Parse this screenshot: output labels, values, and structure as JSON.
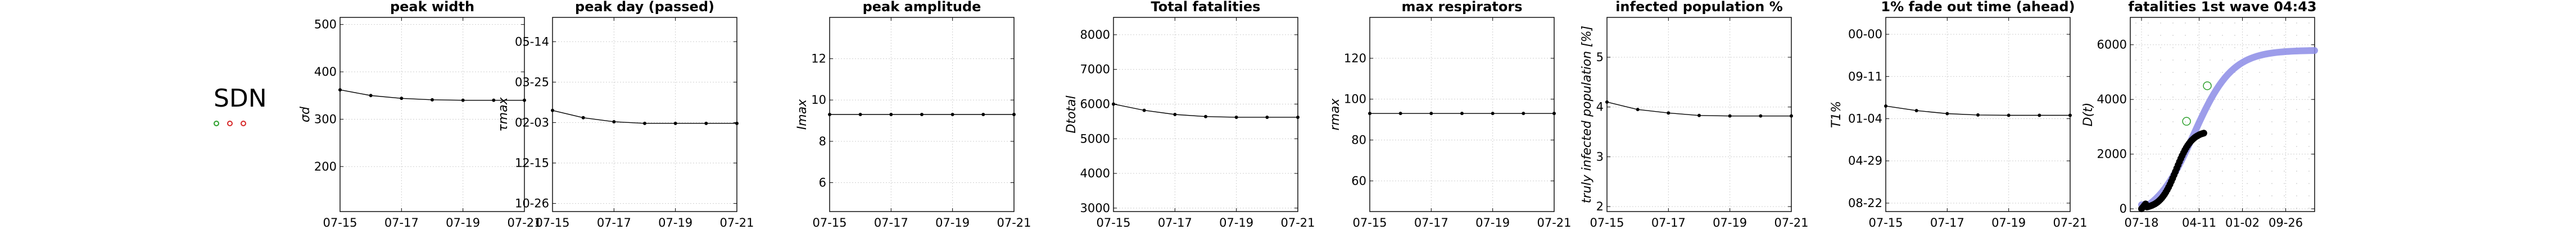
{
  "country": "SDN",
  "marker_colors": [
    "#2ca02c",
    "#d62728",
    "#d62728"
  ],
  "chart_data": [
    {
      "type": "line",
      "title": "peak width",
      "ylabel": "σd",
      "x": [
        "07-15",
        "07-16",
        "07-17",
        "07-18",
        "07-19",
        "07-20",
        "07-21"
      ],
      "xticks": [
        "07-15",
        "07-17",
        "07-19",
        "07-21"
      ],
      "yticks": [
        {
          "v": 200,
          "t": "200"
        },
        {
          "v": 300,
          "t": "300"
        },
        {
          "v": 400,
          "t": "400"
        },
        {
          "v": 500,
          "t": "500"
        }
      ],
      "ylim": [
        105,
        515
      ],
      "values": [
        362,
        350,
        344,
        341,
        340,
        340,
        340
      ]
    },
    {
      "type": "line",
      "title": "peak day (passed)",
      "ylabel": "τmax",
      "x": [
        "07-15",
        "07-16",
        "07-17",
        "07-18",
        "07-19",
        "07-20",
        "07-21"
      ],
      "xticks": [
        "07-15",
        "07-17",
        "07-19",
        "07-21"
      ],
      "yticks": [
        {
          "v": 0,
          "t": "10-26"
        },
        {
          "v": 50,
          "t": "12-15"
        },
        {
          "v": 100,
          "t": "02-03"
        },
        {
          "v": 150,
          "t": "03-25"
        },
        {
          "v": 200,
          "t": "05-14"
        }
      ],
      "ylim": [
        -10,
        230
      ],
      "values": [
        115,
        106,
        101,
        99,
        99,
        99,
        99
      ]
    },
    {
      "type": "line",
      "title": "peak amplitude",
      "ylabel": "Imax",
      "x": [
        "07-15",
        "07-16",
        "07-17",
        "07-18",
        "07-19",
        "07-20",
        "07-21"
      ],
      "xticks": [
        "07-15",
        "07-17",
        "07-19",
        "07-21"
      ],
      "yticks": [
        {
          "v": 6,
          "t": "6"
        },
        {
          "v": 8,
          "t": "8"
        },
        {
          "v": 10,
          "t": "10"
        },
        {
          "v": 12,
          "t": "12"
        }
      ],
      "ylim": [
        4.6,
        14
      ],
      "values": [
        9.3,
        9.3,
        9.3,
        9.3,
        9.3,
        9.3,
        9.3
      ]
    },
    {
      "type": "line",
      "title": "Total fatalities",
      "ylabel": "Dtotal",
      "x": [
        "07-15",
        "07-16",
        "07-17",
        "07-18",
        "07-19",
        "07-20",
        "07-21"
      ],
      "xticks": [
        "07-15",
        "07-17",
        "07-19",
        "07-21"
      ],
      "yticks": [
        {
          "v": 3000,
          "t": "3000"
        },
        {
          "v": 4000,
          "t": "4000"
        },
        {
          "v": 5000,
          "t": "5000"
        },
        {
          "v": 6000,
          "t": "6000"
        },
        {
          "v": 7000,
          "t": "7000"
        },
        {
          "v": 8000,
          "t": "8000"
        }
      ],
      "ylim": [
        2900,
        8500
      ],
      "values": [
        6000,
        5820,
        5700,
        5640,
        5620,
        5620,
        5620
      ]
    },
    {
      "type": "line",
      "title": "max respirators",
      "ylabel": "rmax",
      "x": [
        "07-15",
        "07-16",
        "07-17",
        "07-18",
        "07-19",
        "07-20",
        "07-21"
      ],
      "xticks": [
        "07-15",
        "07-17",
        "07-19",
        "07-21"
      ],
      "yticks": [
        {
          "v": 60,
          "t": "60"
        },
        {
          "v": 80,
          "t": "80"
        },
        {
          "v": 100,
          "t": "100"
        },
        {
          "v": 120,
          "t": "120"
        }
      ],
      "ylim": [
        45,
        140
      ],
      "values": [
        93,
        93,
        93,
        93,
        93,
        93,
        93
      ]
    },
    {
      "type": "line",
      "title": "infected population %",
      "ylabel": "truly infected population [%]",
      "x": [
        "07-15",
        "07-16",
        "07-17",
        "07-18",
        "07-19",
        "07-20",
        "07-21"
      ],
      "xticks": [
        "07-15",
        "07-17",
        "07-19",
        "07-21"
      ],
      "yticks": [
        {
          "v": 2,
          "t": "2"
        },
        {
          "v": 3,
          "t": "3"
        },
        {
          "v": 4,
          "t": "4"
        },
        {
          "v": 5,
          "t": "5"
        }
      ],
      "ylim": [
        1.9,
        5.8
      ],
      "values": [
        4.1,
        3.95,
        3.88,
        3.83,
        3.82,
        3.82,
        3.82
      ]
    },
    {
      "type": "line",
      "title": "1% fade out time (ahead)",
      "ylabel": "T1%",
      "x": [
        "07-15",
        "07-16",
        "07-17",
        "07-18",
        "07-19",
        "07-20",
        "07-21"
      ],
      "xticks": [
        "07-15",
        "07-17",
        "07-19",
        "07-21"
      ],
      "yticks": [
        {
          "v": 0,
          "t": "08-22"
        },
        {
          "v": 250,
          "t": "04-29"
        },
        {
          "v": 500,
          "t": "01-04"
        },
        {
          "v": 750,
          "t": "09-11"
        },
        {
          "v": 1000,
          "t": "00-00"
        }
      ],
      "ylim": [
        -50,
        1100
      ],
      "values": [
        575,
        548,
        530,
        522,
        520,
        520,
        520
      ]
    },
    {
      "type": "scatter",
      "title": "fatalities 1st wave 04:43",
      "ylabel": "D(t)",
      "xticks": [
        {
          "v": 0,
          "t": "07-18"
        },
        {
          "v": 0.333,
          "t": "04-11"
        },
        {
          "v": 0.583,
          "t": "01-02"
        },
        {
          "v": 0.833,
          "t": "09-26"
        }
      ],
      "yticks": [
        {
          "v": 0,
          "t": "0"
        },
        {
          "v": 2000,
          "t": "2000"
        },
        {
          "v": 4000,
          "t": "4000"
        },
        {
          "v": 6000,
          "t": "6000"
        }
      ],
      "ylim": [
        -100,
        7000
      ],
      "fit_curve": {
        "color": "#8c8ce6"
      },
      "observed": {
        "color": "#000000"
      }
    }
  ]
}
